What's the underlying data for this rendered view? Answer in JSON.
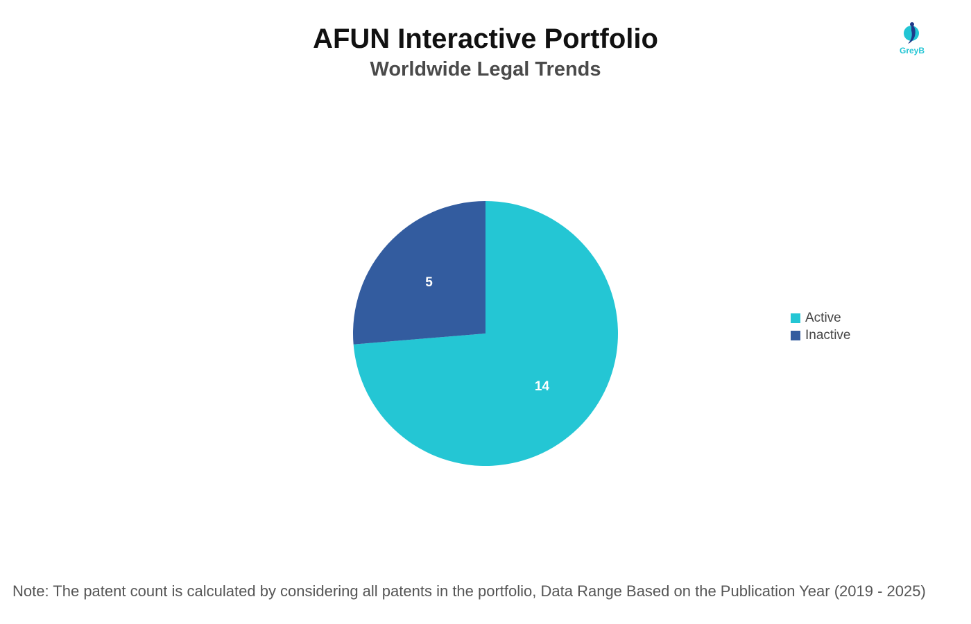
{
  "header": {
    "title": "AFUN Interactive Portfolio",
    "subtitle": "Worldwide Legal Trends"
  },
  "logo": {
    "text": "GreyB",
    "icon": "greyb-logo-icon",
    "color": "#22c5d4"
  },
  "chart_data": {
    "type": "pie",
    "title": "AFUN Interactive Portfolio",
    "subtitle": "Worldwide Legal Trends",
    "categories": [
      "Active",
      "Inactive"
    ],
    "values": [
      14,
      5
    ],
    "colors": [
      "#24c6d4",
      "#335c9f"
    ],
    "data_labels": [
      "14",
      "5"
    ],
    "legend_position": "right"
  },
  "legend": {
    "items": [
      {
        "label": "Active",
        "color": "#24c6d4"
      },
      {
        "label": "Inactive",
        "color": "#335c9f"
      }
    ]
  },
  "footer": {
    "note": "Note: The patent count is calculated by considering all patents in the portfolio, Data Range Based on the Publication Year (2019 - 2025)"
  }
}
